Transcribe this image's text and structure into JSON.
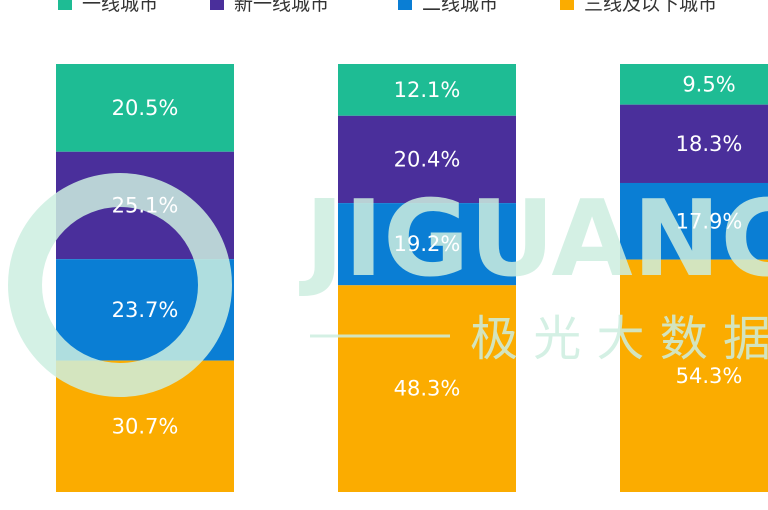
{
  "chart_data": {
    "type": "stacked-bar",
    "categories": [
      "",
      "",
      ""
    ],
    "ylim": [
      0,
      100
    ],
    "series": [
      {
        "name": "一线城市",
        "color": "#1ebc94",
        "values": [
          20.5,
          12.1,
          9.5
        ]
      },
      {
        "name": "新一线城市",
        "color": "#4a2f9b",
        "values": [
          25.1,
          20.4,
          18.3
        ]
      },
      {
        "name": "二线城市",
        "color": "#0a7ed4",
        "values": [
          23.7,
          19.2,
          17.9
        ]
      },
      {
        "name": "三线及以下城市",
        "color": "#fbac00",
        "values": [
          30.7,
          48.3,
          54.3
        ]
      }
    ],
    "labels": [
      [
        "20.5%",
        "12.1%",
        "9.5%"
      ],
      [
        "25.1%",
        "20.4%",
        "18.3%"
      ],
      [
        "23.7%",
        "19.2%",
        "17.9%"
      ],
      [
        "30.7%",
        "48.3%",
        "54.3%"
      ]
    ],
    "legend_position": "top",
    "grid": false
  },
  "watermark": {
    "text_en": "JIGUANG",
    "text_cn": "极 光 大 数 据",
    "color": "#cdeee0"
  }
}
